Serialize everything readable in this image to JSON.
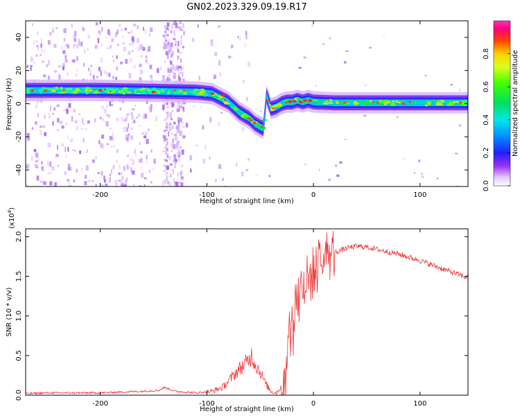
{
  "figure": {
    "title": "GN02.2023.329.09.19.R17"
  },
  "chart_data": [
    {
      "type": "heatmap",
      "xlabel": "Height of straight line (km)",
      "ylabel": "Frequency (Hz)",
      "xlim": [
        -270,
        145
      ],
      "ylim": [
        -50,
        50
      ],
      "xticks": [
        -200,
        -100,
        0,
        100
      ],
      "yticks": [
        -40,
        -20,
        0,
        20,
        40
      ],
      "grid": false,
      "colorbar": {
        "label": "Normalized spectral amplitude",
        "range": [
          0,
          1
        ],
        "ticks": [
          0.0,
          0.2,
          0.4,
          0.6,
          0.8
        ],
        "colormap": "gist_ncar (white-purple-blue-cyan-green-yellow-red-magenta)"
      },
      "ridge": {
        "x": [
          -270,
          -200,
          -150,
          -110,
          -95,
          -80,
          -70,
          -60,
          -55,
          -50,
          -47,
          -44,
          -40,
          -35,
          -30,
          -25,
          -20,
          -15,
          -10,
          -5,
          0,
          20,
          60,
          100,
          145
        ],
        "y": [
          8,
          8,
          7.5,
          7,
          6,
          1,
          -5,
          -9,
          -12,
          -14,
          -15,
          5,
          -3,
          -2,
          0,
          1,
          1,
          2,
          1,
          2,
          1,
          0.5,
          0.5,
          0.5,
          0.5
        ]
      }
    },
    {
      "type": "line",
      "xlabel": "Height of straight line (km)",
      "ylabel": "SNR (10 * v/v)",
      "y_scale_label": "(x10",
      "y_scale_exponent": "4",
      "xlim": [
        -270,
        145
      ],
      "ylim": [
        0,
        2.1
      ],
      "xticks": [
        -200,
        -100,
        0,
        100
      ],
      "yticks": [
        "0.0",
        "0.5",
        "1.0",
        "1.5",
        "2.0"
      ],
      "grid": false,
      "color": "#ee3333",
      "series": [
        {
          "x": [
            -270,
            -250,
            -220,
            -200,
            -180,
            -160,
            -145,
            -140,
            -130,
            -110,
            -95,
            -85,
            -75,
            -68,
            -62,
            -58,
            -55,
            -50,
            -45,
            -40,
            -35,
            -30,
            -25,
            -20,
            -15,
            -10,
            -5,
            0,
            5,
            10,
            15,
            20,
            30,
            40,
            50,
            60,
            80,
            100,
            120,
            145
          ],
          "y": [
            0.02,
            0.03,
            0.03,
            0.03,
            0.04,
            0.05,
            0.06,
            0.1,
            0.05,
            0.03,
            0.05,
            0.1,
            0.25,
            0.35,
            0.42,
            0.5,
            0.4,
            0.3,
            0.15,
            0.05,
            0.03,
            0.1,
            0.5,
            0.9,
            1.3,
            1.4,
            1.45,
            1.55,
            1.65,
            1.75,
            1.78,
            1.8,
            1.85,
            1.88,
            1.87,
            1.84,
            1.78,
            1.7,
            1.6,
            1.48
          ]
        }
      ]
    }
  ]
}
